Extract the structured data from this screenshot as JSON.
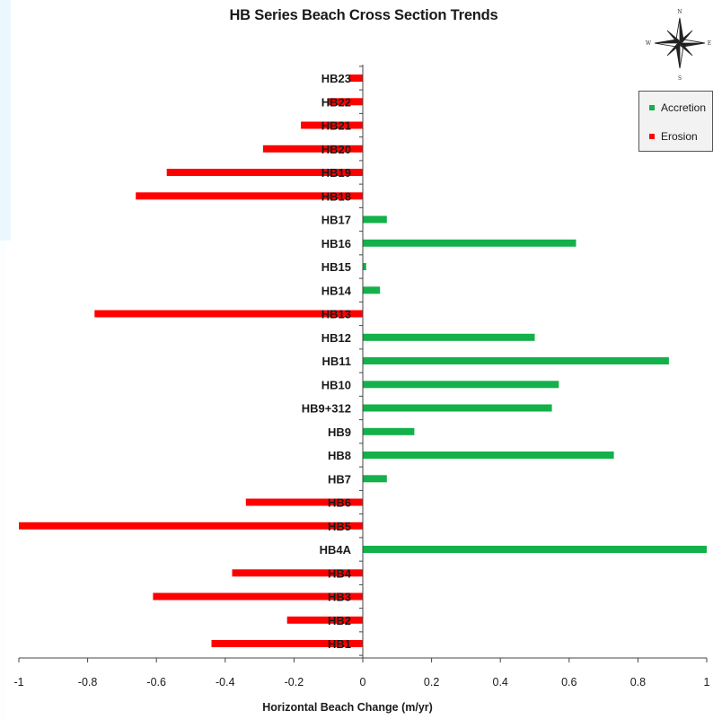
{
  "colors": {
    "accretion": "#14b04a",
    "erosion": "#ff0000",
    "axis": "#444444",
    "label": "#1a1a1a"
  },
  "compass_labels": {
    "n": "N",
    "s": "S",
    "e": "E",
    "w": "W"
  },
  "legend": {
    "accretion_label": "Accretion",
    "erosion_label": "Erosion"
  },
  "chart_data": {
    "type": "bar",
    "orientation": "horizontal",
    "title": "HB Series Beach Cross Section Trends",
    "xlabel": "Horizontal Beach Change (m/yr)",
    "ylabel": "",
    "xlim": [
      -1,
      1
    ],
    "xticks": [
      "-1",
      "-0.8",
      "-0.6",
      "-0.4",
      "-0.2",
      "0",
      "0.2",
      "0.4",
      "0.6",
      "0.8",
      "1"
    ],
    "grid": false,
    "legend_position": "top-right",
    "categories": [
      "HB23",
      "HB22",
      "HB21",
      "HB20",
      "HB19",
      "HB18",
      "HB17",
      "HB16",
      "HB15",
      "HB14",
      "HB13",
      "HB12",
      "HB11",
      "HB10",
      "HB9+312",
      "HB9",
      "HB8",
      "HB7",
      "HB6",
      "HB5",
      "HB4A",
      "HB4",
      "HB3",
      "HB2",
      "HB1"
    ],
    "values": [
      -0.04,
      -0.1,
      -0.18,
      -0.29,
      -0.57,
      -0.66,
      0.07,
      0.62,
      0.01,
      0.05,
      -0.78,
      0.5,
      0.89,
      0.57,
      0.55,
      0.15,
      0.73,
      0.07,
      -0.34,
      -1.0,
      1.0,
      -0.38,
      -0.61,
      -0.22,
      -0.44
    ],
    "series": [
      {
        "name": "Accretion",
        "sign": "positive"
      },
      {
        "name": "Erosion",
        "sign": "negative"
      }
    ]
  }
}
